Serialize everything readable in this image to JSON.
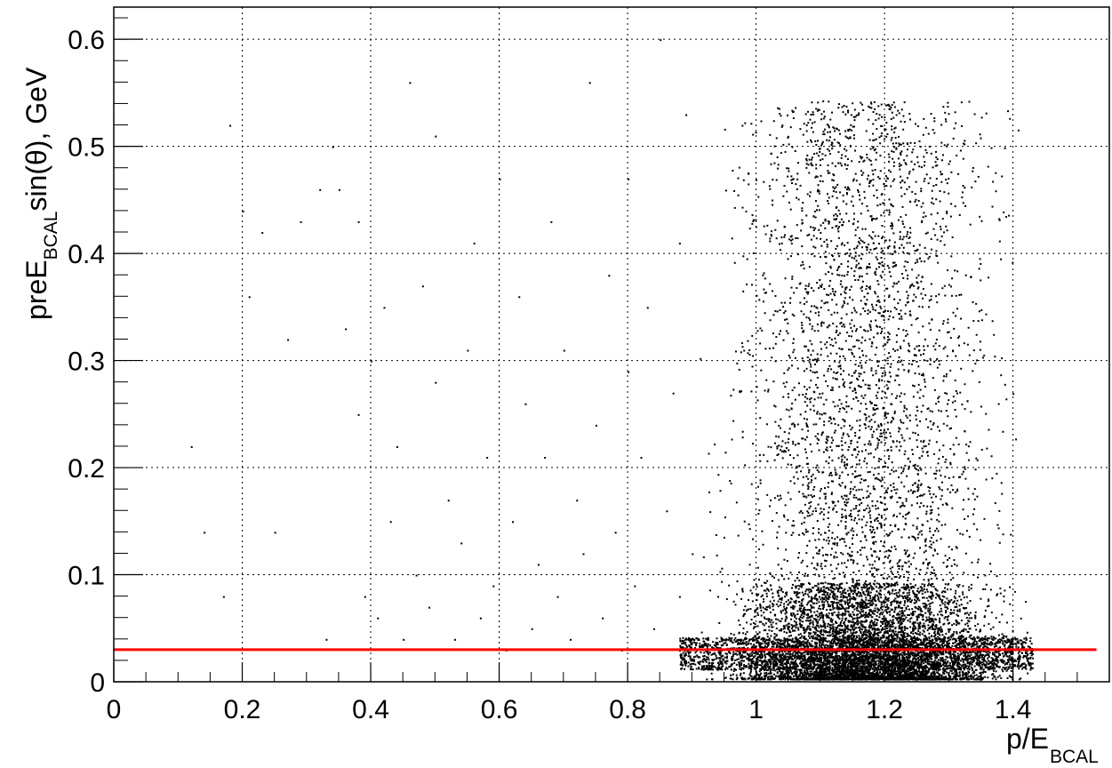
{
  "chart_data": {
    "type": "scatter",
    "title": "",
    "xlabel": {
      "main": "p/E",
      "sub": "BCAL"
    },
    "ylabel": {
      "pre": "preE",
      "sub": "BCAL",
      "post": "sin(θ), GeV"
    },
    "xlim": [
      0,
      1.55
    ],
    "ylim": [
      0,
      0.63
    ],
    "grid": true,
    "x_ticks": [
      {
        "value": 0,
        "label": "0"
      },
      {
        "value": 0.2,
        "label": "0.2"
      },
      {
        "value": 0.4,
        "label": "0.4"
      },
      {
        "value": 0.6,
        "label": "0.6"
      },
      {
        "value": 0.8,
        "label": "0.8"
      },
      {
        "value": 1,
        "label": "1"
      },
      {
        "value": 1.2,
        "label": "1.2"
      },
      {
        "value": 1.4,
        "label": "1.4"
      }
    ],
    "y_ticks": [
      {
        "value": 0,
        "label": "0"
      },
      {
        "value": 0.1,
        "label": "0.1"
      },
      {
        "value": 0.2,
        "label": "0.2"
      },
      {
        "value": 0.3,
        "label": "0.3"
      },
      {
        "value": 0.4,
        "label": "0.4"
      },
      {
        "value": 0.5,
        "label": "0.5"
      },
      {
        "value": 0.6,
        "label": "0.6"
      }
    ],
    "cut_line": {
      "y": 0.03,
      "x_range": [
        0,
        1.53
      ],
      "color": "#ff0000"
    },
    "marker_color": "#000000",
    "points": [
      [
        0.12,
        0.22
      ],
      [
        0.14,
        0.14
      ],
      [
        0.17,
        0.08
      ],
      [
        0.18,
        0.52
      ],
      [
        0.2,
        0.44
      ],
      [
        0.21,
        0.36
      ],
      [
        0.23,
        0.42
      ],
      [
        0.25,
        0.14
      ],
      [
        0.27,
        0.32
      ],
      [
        0.29,
        0.43
      ],
      [
        0.32,
        0.46
      ],
      [
        0.33,
        0.04
      ],
      [
        0.34,
        0.5
      ],
      [
        0.35,
        0.46
      ],
      [
        0.36,
        0.33
      ],
      [
        0.38,
        0.43
      ],
      [
        0.38,
        0.25
      ],
      [
        0.39,
        0.08
      ],
      [
        0.4,
        0.3
      ],
      [
        0.41,
        0.06
      ],
      [
        0.42,
        0.35
      ],
      [
        0.43,
        0.15
      ],
      [
        0.44,
        0.22
      ],
      [
        0.45,
        0.04
      ],
      [
        0.46,
        0.56
      ],
      [
        0.47,
        0.1
      ],
      [
        0.48,
        0.37
      ],
      [
        0.49,
        0.07
      ],
      [
        0.5,
        0.28
      ],
      [
        0.5,
        0.51
      ],
      [
        0.52,
        0.17
      ],
      [
        0.53,
        0.04
      ],
      [
        0.54,
        0.13
      ],
      [
        0.55,
        0.31
      ],
      [
        0.56,
        0.41
      ],
      [
        0.57,
        0.06
      ],
      [
        0.58,
        0.21
      ],
      [
        0.59,
        0.09
      ],
      [
        0.6,
        0.47
      ],
      [
        0.61,
        0.03
      ],
      [
        0.62,
        0.15
      ],
      [
        0.63,
        0.36
      ],
      [
        0.64,
        0.26
      ],
      [
        0.65,
        0.05
      ],
      [
        0.66,
        0.11
      ],
      [
        0.67,
        0.21
      ],
      [
        0.68,
        0.43
      ],
      [
        0.69,
        0.08
      ],
      [
        0.7,
        0.31
      ],
      [
        0.71,
        0.04
      ],
      [
        0.72,
        0.17
      ],
      [
        0.73,
        0.12
      ],
      [
        0.74,
        0.56
      ],
      [
        0.75,
        0.24
      ],
      [
        0.76,
        0.06
      ],
      [
        0.77,
        0.38
      ],
      [
        0.78,
        0.14
      ],
      [
        0.79,
        0.03
      ],
      [
        0.8,
        0.29
      ],
      [
        0.8,
        0.47
      ],
      [
        0.81,
        0.09
      ],
      [
        0.82,
        0.21
      ],
      [
        0.83,
        0.35
      ],
      [
        0.84,
        0.05
      ],
      [
        0.85,
        0.6
      ],
      [
        0.86,
        0.16
      ],
      [
        0.87,
        0.27
      ],
      [
        0.88,
        0.41
      ],
      [
        0.88,
        0.08
      ],
      [
        0.89,
        0.53
      ],
      [
        0.9,
        0.12
      ]
    ]
  }
}
